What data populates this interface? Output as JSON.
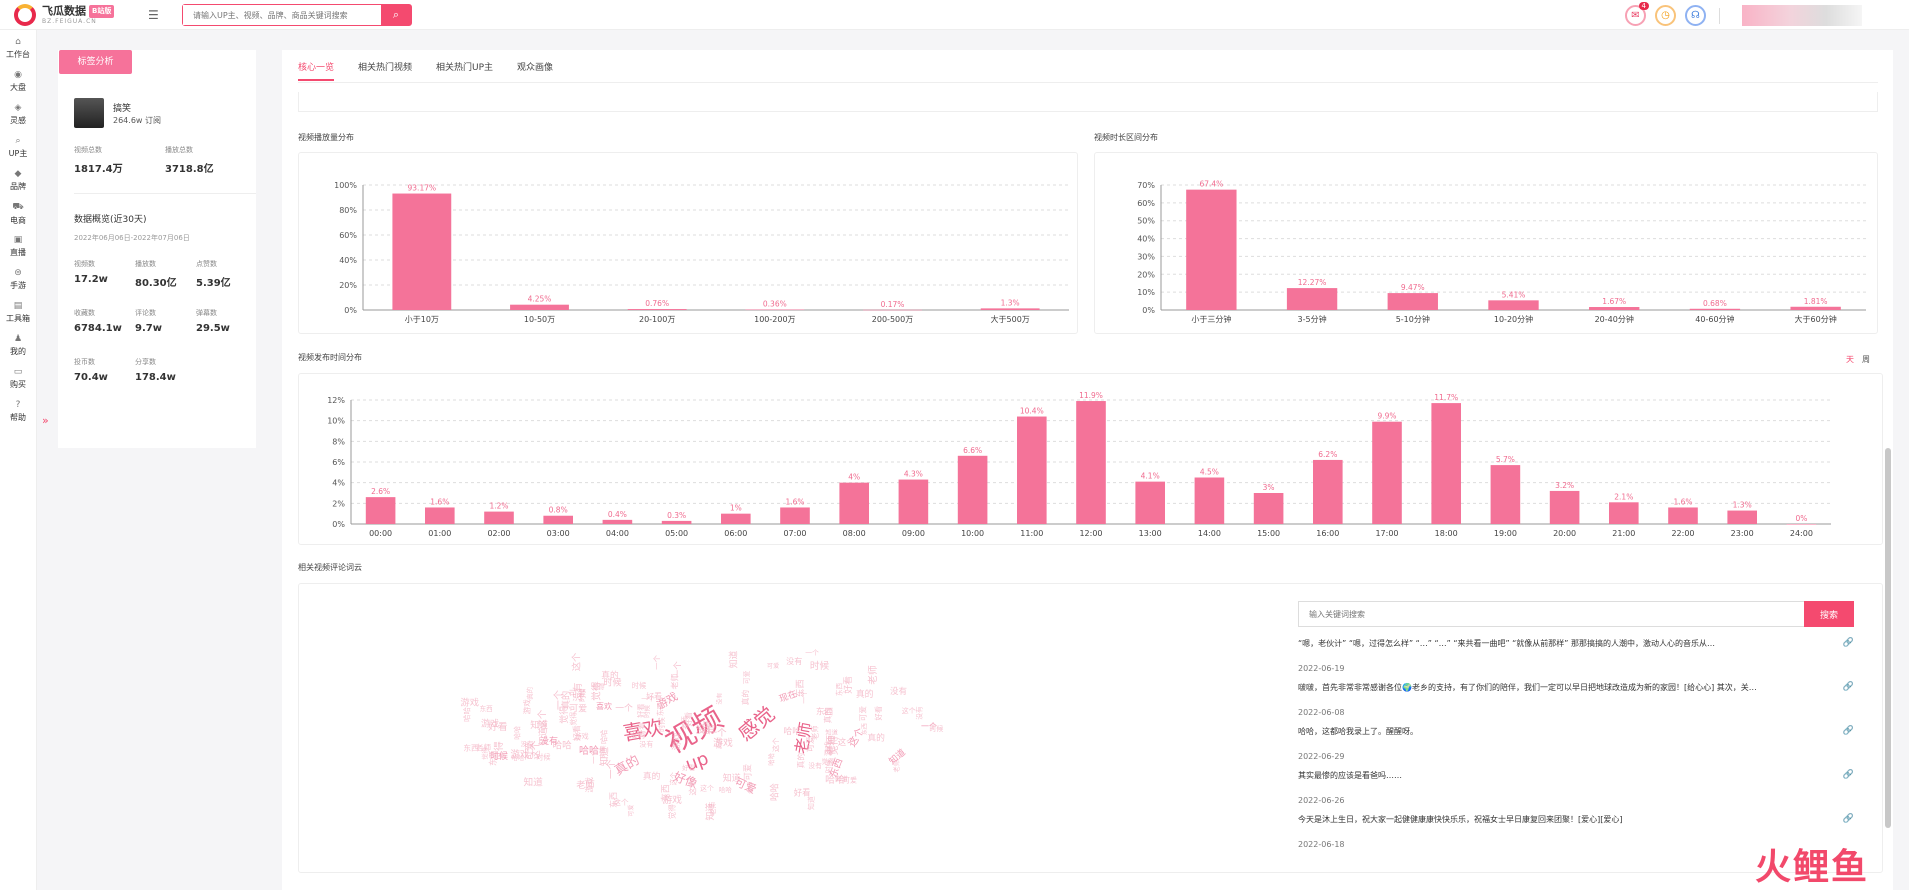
{
  "header": {
    "logo_title": "飞瓜数据",
    "logo_badge": "B站版",
    "logo_sub": "BZ.FEIGUA.CN",
    "search_placeholder": "请输入UP主、视频、品牌、商品关键词搜索",
    "mail_badge": "4"
  },
  "sidebar": {
    "items": [
      {
        "label": "工作台",
        "icon": "home-icon"
      },
      {
        "label": "大盘",
        "icon": "globe-icon"
      },
      {
        "label": "灵感",
        "icon": "bulb-icon"
      },
      {
        "label": "UP主",
        "icon": "search-user-icon"
      },
      {
        "label": "品牌",
        "icon": "diamond-icon"
      },
      {
        "label": "电商",
        "icon": "cart-icon"
      },
      {
        "label": "直播",
        "icon": "tv-icon"
      },
      {
        "label": "手游",
        "icon": "gamepad-icon"
      },
      {
        "label": "工具箱",
        "icon": "toolbox-icon"
      },
      {
        "label": "我的",
        "icon": "user-icon"
      },
      {
        "label": "购买",
        "icon": "card-icon"
      },
      {
        "label": "帮助",
        "icon": "help-icon"
      }
    ]
  },
  "left": {
    "tag_button": "标签分析",
    "name": "搞笑",
    "subs": "264.6w 订阅",
    "video_total_label": "视频总数",
    "video_total": "1817.4万",
    "play_total_label": "播放总数",
    "play_total": "3718.8亿",
    "overview_title": "数据概览(近30天)",
    "overview_date": "2022年06月06日-2022年07月06日",
    "stats": [
      {
        "label": "视频数",
        "value": "17.2w"
      },
      {
        "label": "播放数",
        "value": "80.30亿"
      },
      {
        "label": "点赞数",
        "value": "5.39亿"
      },
      {
        "label": "收藏数",
        "value": "6784.1w"
      },
      {
        "label": "评论数",
        "value": "9.7w"
      },
      {
        "label": "弹幕数",
        "value": "29.5w"
      },
      {
        "label": "投币数",
        "value": "70.4w"
      },
      {
        "label": "分享数",
        "value": "178.4w"
      }
    ]
  },
  "tabs": [
    "核心一览",
    "相关热门视频",
    "相关热门UP主",
    "观众画像"
  ],
  "sections": {
    "play": "视频播放量分布",
    "duration": "视频时长区间分布",
    "publish": "视频发布时间分布",
    "wordcloud": "相关视频评论词云"
  },
  "toggle": {
    "day": "天",
    "week": "周"
  },
  "chart_data": [
    {
      "type": "bar",
      "title": "视频播放量分布",
      "categories": [
        "小于10万",
        "10-50万",
        "20-100万",
        "100-200万",
        "200-500万",
        "大于500万"
      ],
      "values": [
        93.17,
        4.25,
        0.76,
        0.36,
        0.17,
        1.3
      ],
      "labels": [
        "93.17%",
        "4.25%",
        "0.76%",
        "0.36%",
        "0.17%",
        "1.3%"
      ],
      "ylim": [
        0,
        100
      ],
      "yticks": [
        "0%",
        "20%",
        "40%",
        "60%",
        "80%",
        "100%"
      ]
    },
    {
      "type": "bar",
      "title": "视频时长区间分布",
      "categories": [
        "小于三分钟",
        "3-5分钟",
        "5-10分钟",
        "10-20分钟",
        "20-40分钟",
        "40-60分钟",
        "大于60分钟"
      ],
      "values": [
        67.4,
        12.27,
        9.47,
        5.41,
        1.67,
        0.68,
        1.81
      ],
      "labels": [
        "67.4%",
        "12.27%",
        "9.47%",
        "5.41%",
        "1.67%",
        "0.68%",
        "1.81%"
      ],
      "ylim": [
        0,
        70
      ],
      "yticks": [
        "0%",
        "10%",
        "20%",
        "30%",
        "40%",
        "50%",
        "60%",
        "70%"
      ]
    },
    {
      "type": "bar",
      "title": "视频发布时间分布",
      "categories": [
        "00:00",
        "01:00",
        "02:00",
        "03:00",
        "04:00",
        "05:00",
        "06:00",
        "07:00",
        "08:00",
        "09:00",
        "10:00",
        "11:00",
        "12:00",
        "13:00",
        "14:00",
        "15:00",
        "16:00",
        "17:00",
        "18:00",
        "19:00",
        "20:00",
        "21:00",
        "22:00",
        "23:00",
        "24:00"
      ],
      "values": [
        2.6,
        1.6,
        1.2,
        0.8,
        0.4,
        0.3,
        1,
        1.6,
        4,
        4.3,
        6.6,
        10.4,
        11.9,
        4.1,
        4.5,
        3,
        6.2,
        9.9,
        11.7,
        5.7,
        3.2,
        2.1,
        1.6,
        1.3,
        0
      ],
      "labels": [
        "2.6%",
        "1.6%",
        "1.2%",
        "0.8%",
        "0.4%",
        "0.3%",
        "1%",
        "1.6%",
        "4%",
        "4.3%",
        "6.6%",
        "10.4%",
        "11.9%",
        "4.1%",
        "4.5%",
        "3%",
        "6.2%",
        "9.9%",
        "11.7%",
        "5.7%",
        "3.2%",
        "2.1%",
        "1.6%",
        "1.3%",
        "0%"
      ],
      "ylim": [
        0,
        12
      ],
      "yticks": [
        "0%",
        "2%",
        "4%",
        "6%",
        "8%",
        "10%",
        "12%"
      ]
    }
  ],
  "wordcloud": {
    "words": [
      {
        "t": "视频",
        "s": 30
      },
      {
        "t": "喜欢",
        "s": 20
      },
      {
        "t": "感觉",
        "s": 20
      },
      {
        "t": "up",
        "s": 18
      },
      {
        "t": "老师",
        "s": 16
      },
      {
        "t": "真的",
        "s": 13
      },
      {
        "t": "好像",
        "s": 12
      },
      {
        "t": "可爱",
        "s": 11
      },
      {
        "t": "游戏",
        "s": 11
      },
      {
        "t": "这个",
        "s": 10
      },
      {
        "t": "哈哈",
        "s": 10
      },
      {
        "t": "东西",
        "s": 10
      },
      {
        "t": "没有",
        "s": 9
      },
      {
        "t": "知道",
        "s": 9
      },
      {
        "t": "时候",
        "s": 9
      },
      {
        "t": "现在",
        "s": 9
      },
      {
        "t": "喜欢",
        "s": 8
      },
      {
        "t": "一个",
        "s": 8
      }
    ]
  },
  "comments": {
    "search_placeholder": "输入关键词搜索",
    "search_button": "搜索",
    "items": [
      {
        "text": "“嗯，老伙计” “嗯，过得怎么样” “…” “…” “来共看一曲吧” “就像从前那样” 那那搞搞的人潮中，激动人心的音乐从…",
        "date": "2022-06-19"
      },
      {
        "text": "啵啵，首先非常非常感谢各位🌍老乡的支持，有了你们的陪伴，我们一定可以早日把地球改造成为新的家园！[给心心] 其次，关…",
        "date": "2022-06-08"
      },
      {
        "text": "哈哈，这都哈我录上了。醒醒呀。",
        "date": "2022-06-29"
      },
      {
        "text": "其实最惨的应该是看爸吗……",
        "date": "2022-06-26"
      },
      {
        "text": "今天是沐上生日，祝大家一起健健康康快快乐乐，祝福女士早日康复回来团聚！[爱心][爱心]",
        "date": "2022-06-18"
      }
    ]
  },
  "watermark": "火鲤鱼",
  "colors": {
    "accent": "#f44a6f",
    "bar": "#f47399"
  }
}
